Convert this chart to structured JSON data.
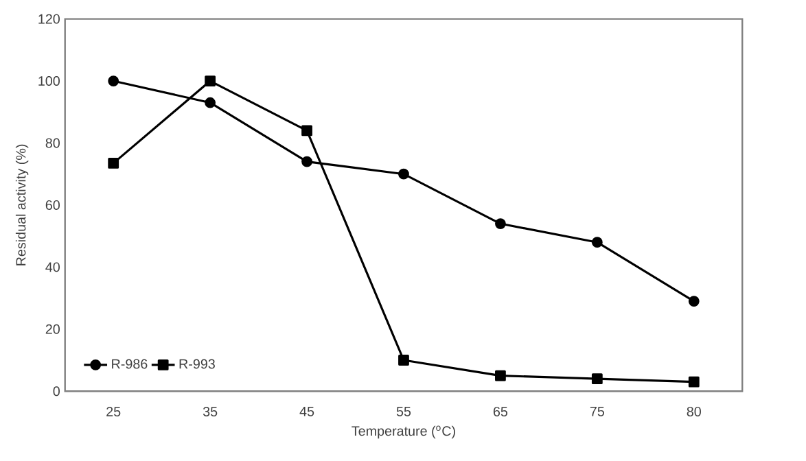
{
  "chart_data": {
    "type": "line",
    "xlabel": "Temperature ($^{o}$C)",
    "ylabel": "Residual activity (%)",
    "categories": [
      "25",
      "35",
      "45",
      "55",
      "65",
      "75",
      "80"
    ],
    "series": [
      {
        "name": "R-986",
        "color": "#000000",
        "marker": "circle",
        "values": [
          100,
          93,
          74,
          70,
          54,
          48,
          29
        ]
      },
      {
        "name": "R-993",
        "color": "#000000",
        "marker": "square",
        "values": [
          73.5,
          100,
          84,
          10,
          5,
          4,
          3
        ]
      }
    ],
    "ylim": [
      0,
      120
    ],
    "yticks": [
      0,
      20,
      40,
      60,
      80,
      100,
      120
    ],
    "grid": false,
    "legend": "bottom left",
    "line_style": "solid"
  }
}
